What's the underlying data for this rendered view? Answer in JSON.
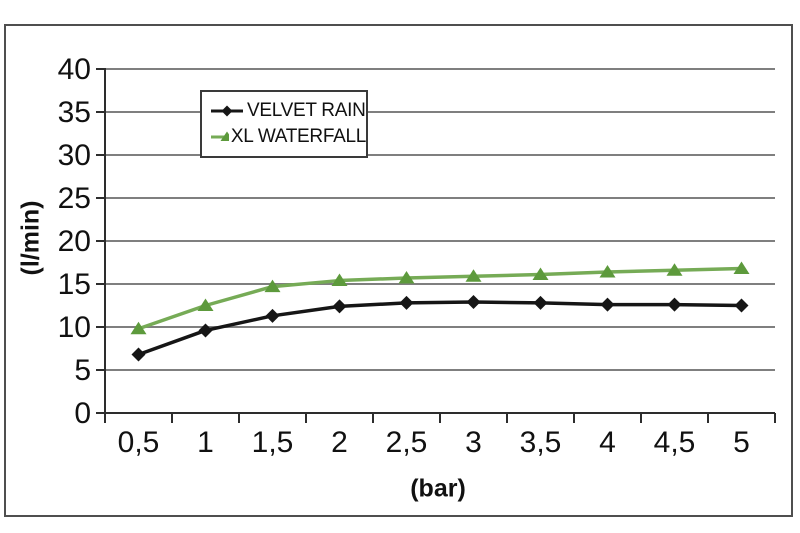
{
  "chart_data": {
    "type": "line",
    "xlabel": "(bar)",
    "ylabel": "(l/min)",
    "x": [
      0.5,
      1,
      1.5,
      2,
      2.5,
      3,
      3.5,
      4,
      4.5,
      5
    ],
    "x_tick_labels": [
      "0,5",
      "1",
      "1,5",
      "2",
      "2,5",
      "3",
      "3,5",
      "4",
      "4,5",
      "5"
    ],
    "ylim": [
      0,
      40
    ],
    "y_ticks": [
      0,
      5,
      10,
      15,
      20,
      25,
      30,
      35,
      40
    ],
    "y_tick_labels": [
      "0",
      "5",
      "10",
      "15",
      "20",
      "25",
      "30",
      "35",
      "40"
    ],
    "grid": true,
    "legend_position": "inside-top-left",
    "series": [
      {
        "name": "VELVET RAIN",
        "marker": "diamond",
        "color": "#161616",
        "marker_color": "#161616",
        "values": [
          6.8,
          9.6,
          11.3,
          12.4,
          12.8,
          12.9,
          12.8,
          12.6,
          12.6,
          12.5
        ]
      },
      {
        "name": "XL WATERFALL",
        "marker": "triangle-up",
        "color": "#76ab56",
        "marker_color": "#5d9a3c",
        "values": [
          9.8,
          12.5,
          14.7,
          15.4,
          15.7,
          15.9,
          16.1,
          16.4,
          16.6,
          16.8
        ]
      }
    ]
  },
  "colors": {
    "gridline": "#7f7f7f",
    "axis": "#2d2d2d",
    "plot_border": "#4f4f4f",
    "legend_border": "#3a3a3a",
    "text": "#111111",
    "background": "#ffffff"
  }
}
